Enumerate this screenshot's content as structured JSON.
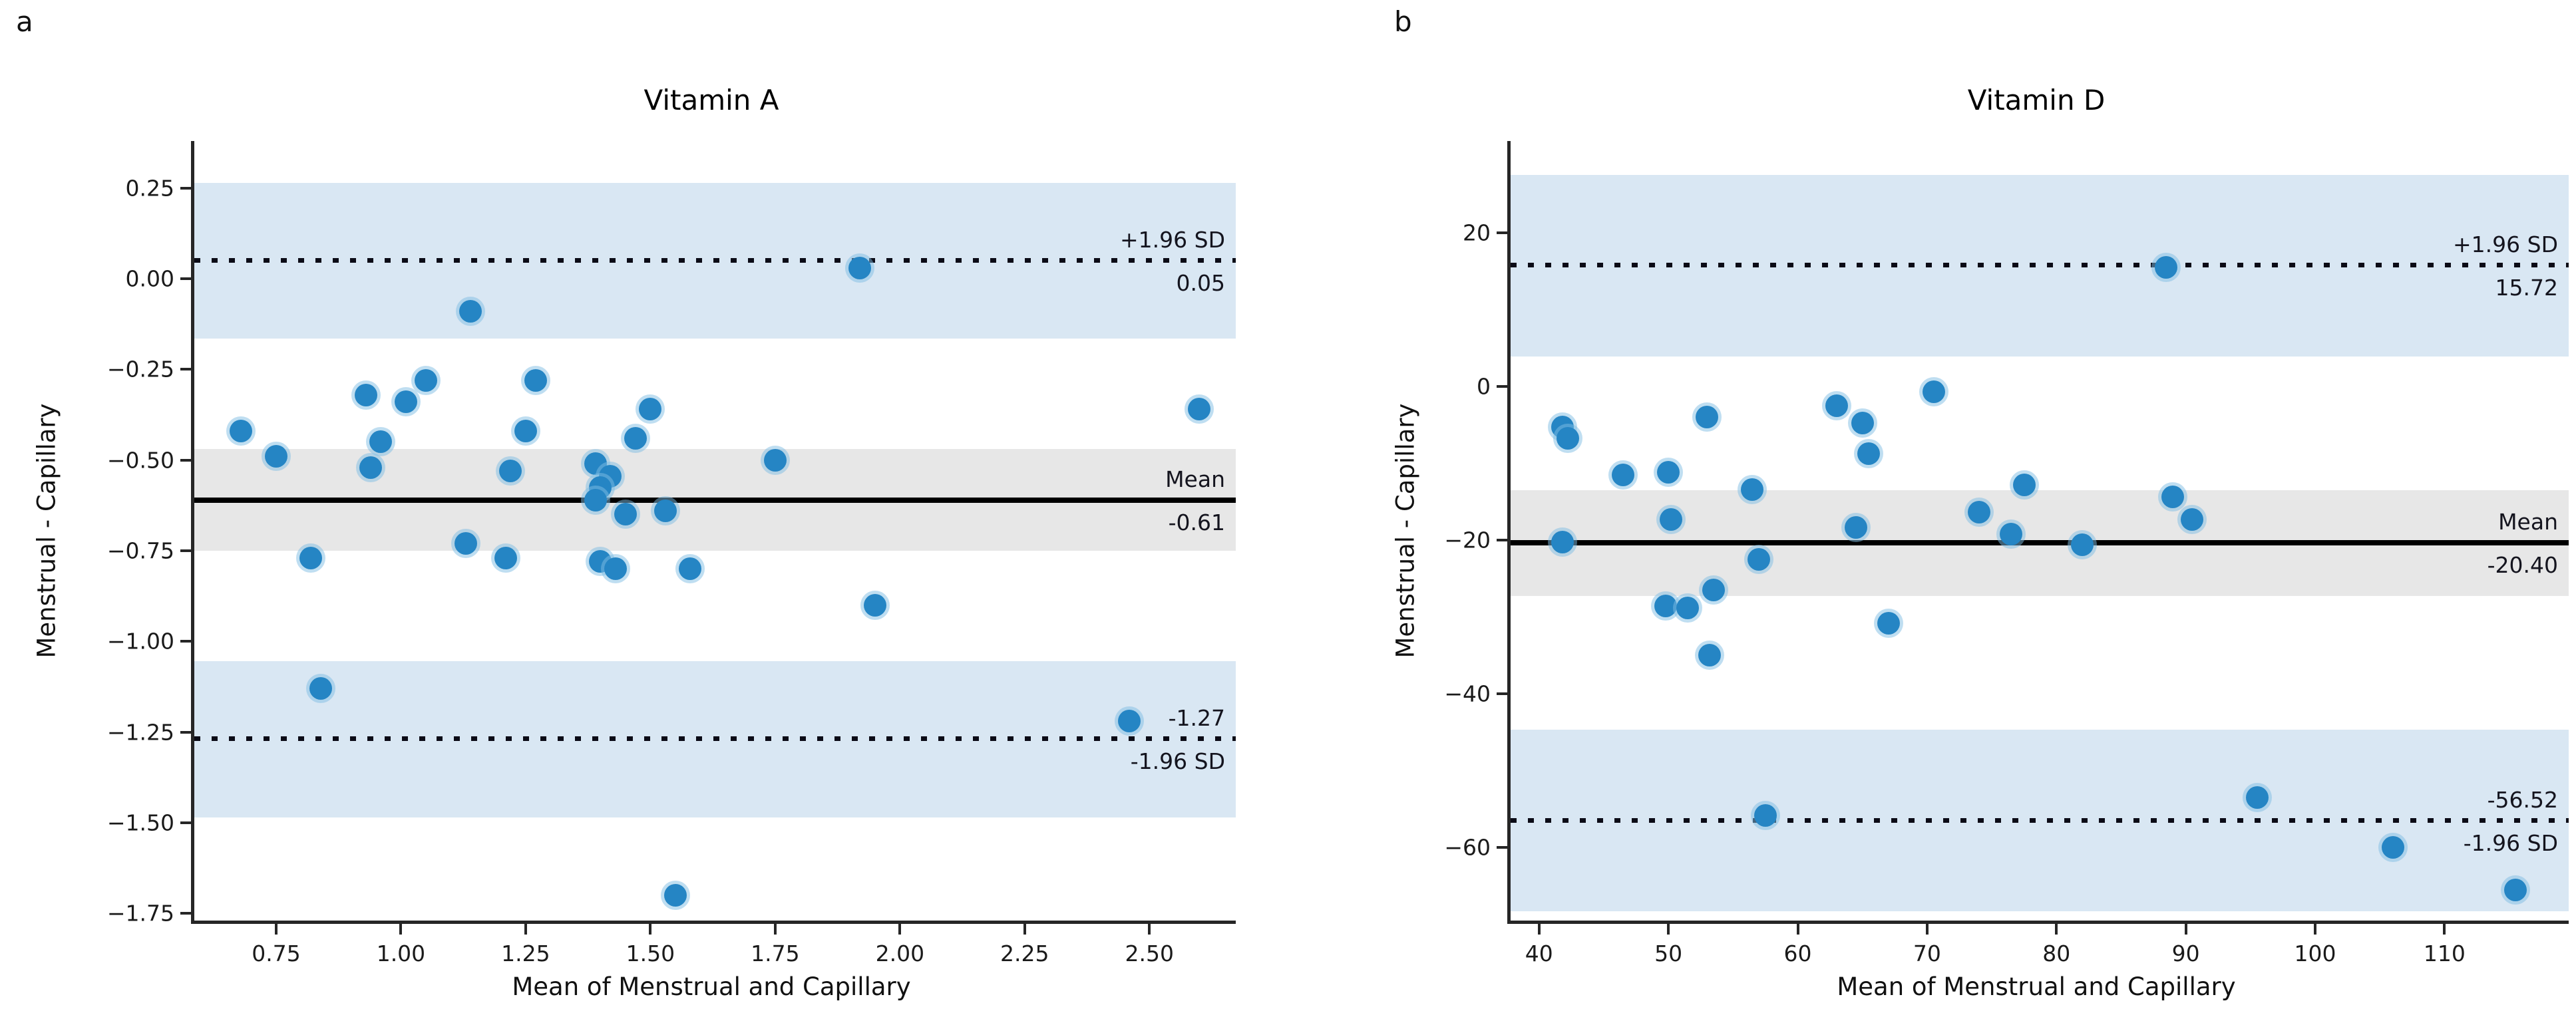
{
  "figure": {
    "panel_a_letter": "a",
    "panel_b_letter": "b"
  },
  "style": {
    "marker_color": "#2585c4",
    "marker_halo": "rgba(128,190,227,0.5)",
    "blue_band_color": "#d9e7f3",
    "gray_band_color": "#e7e7e7",
    "line_color": "#000000"
  },
  "chart_data": [
    {
      "type": "scatter",
      "panel": "a",
      "title": "Vitamin A",
      "xlabel": "Mean of Menstrual and Capillary",
      "ylabel": "Menstrual - Capillary",
      "xlim": [
        0.586,
        2.673
      ],
      "ylim": [
        -1.77,
        0.38
      ],
      "grid": false,
      "xticks": {
        "values": [
          0.75,
          1.0,
          1.25,
          1.5,
          1.75,
          2.0,
          2.25,
          2.5
        ],
        "labels": [
          "0.75",
          "1.00",
          "1.25",
          "1.50",
          "1.75",
          "2.00",
          "2.25",
          "2.50"
        ]
      },
      "yticks": {
        "values": [
          0.25,
          0.0,
          -0.25,
          -0.5,
          -0.75,
          -1.0,
          -1.25,
          -1.5,
          -1.75
        ],
        "labels": [
          "0.25",
          "0.00",
          "−0.25",
          "−0.50",
          "−0.75",
          "−1.00",
          "−1.25",
          "−1.50",
          "−1.75"
        ]
      },
      "lines": {
        "upper_loa": {
          "value": 0.05,
          "style": "dotted",
          "label_above": "+1.96 SD",
          "label_below": "0.05"
        },
        "mean": {
          "value": -0.61,
          "style": "solid",
          "label_above": "Mean",
          "label_below": "-0.61"
        },
        "lower_loa": {
          "value": -1.27,
          "style": "dotted",
          "label_above": "-1.27",
          "label_below": "-1.96 SD"
        }
      },
      "bands": [
        {
          "from": -0.165,
          "to": 0.265,
          "color": "#d9e7f3"
        },
        {
          "from": -0.75,
          "to": -0.47,
          "color": "#e7e7e7"
        },
        {
          "from": -1.485,
          "to": -1.055,
          "color": "#d9e7f3"
        }
      ],
      "points": [
        [
          0.68,
          -0.42
        ],
        [
          0.75,
          -0.49
        ],
        [
          0.82,
          -0.77
        ],
        [
          0.84,
          -1.13
        ],
        [
          0.93,
          -0.32
        ],
        [
          0.96,
          -0.45
        ],
        [
          0.94,
          -0.52
        ],
        [
          1.01,
          -0.34
        ],
        [
          1.05,
          -0.28
        ],
        [
          1.13,
          -0.73
        ],
        [
          1.14,
          -0.09
        ],
        [
          1.21,
          -0.77
        ],
        [
          1.22,
          -0.53
        ],
        [
          1.25,
          -0.42
        ],
        [
          1.27,
          -0.28
        ],
        [
          1.39,
          -0.51
        ],
        [
          1.42,
          -0.545
        ],
        [
          1.4,
          -0.575
        ],
        [
          1.39,
          -0.61
        ],
        [
          1.45,
          -0.65
        ],
        [
          1.4,
          -0.78
        ],
        [
          1.43,
          -0.8
        ],
        [
          1.47,
          -0.44
        ],
        [
          1.5,
          -0.36
        ],
        [
          1.53,
          -0.64
        ],
        [
          1.55,
          -1.7
        ],
        [
          1.58,
          -0.8
        ],
        [
          1.75,
          -0.5
        ],
        [
          1.92,
          0.03
        ],
        [
          1.95,
          -0.9
        ],
        [
          2.46,
          -1.22
        ],
        [
          2.6,
          -0.36
        ]
      ]
    },
    {
      "type": "scatter",
      "panel": "b",
      "title": "Vitamin D",
      "xlabel": "Mean of Menstrual and Capillary",
      "ylabel": "Menstrual - Capillary",
      "xlim": [
        37.8,
        119.6
      ],
      "ylim": [
        -69.5,
        31.9
      ],
      "grid": false,
      "xticks": {
        "values": [
          40,
          50,
          60,
          70,
          80,
          90,
          100,
          110
        ],
        "labels": [
          "40",
          "50",
          "60",
          "70",
          "80",
          "90",
          "100",
          "110"
        ]
      },
      "yticks": {
        "values": [
          20,
          0,
          -20,
          -40,
          -60
        ],
        "labels": [
          "20",
          "0",
          "−20",
          "−40",
          "−60"
        ]
      },
      "lines": {
        "upper_loa": {
          "value": 15.72,
          "style": "dotted",
          "label_above": "+1.96 SD",
          "label_below": "15.72"
        },
        "mean": {
          "value": -20.4,
          "style": "solid",
          "label_above": "Mean",
          "label_below": "-20.40"
        },
        "lower_loa": {
          "value": -56.52,
          "style": "dotted",
          "label_above": "-56.52",
          "label_below": "-1.96 SD"
        }
      },
      "bands": [
        {
          "from": 3.9,
          "to": 27.5,
          "color": "#d9e7f3"
        },
        {
          "from": -27.3,
          "to": -13.5,
          "color": "#e7e7e7"
        },
        {
          "from": -68.3,
          "to": -44.7,
          "color": "#d9e7f3"
        }
      ],
      "points": [
        [
          41.8,
          -5.3
        ],
        [
          42.2,
          -6.8
        ],
        [
          41.8,
          -20.3
        ],
        [
          46.5,
          -11.5
        ],
        [
          50.0,
          -11.2
        ],
        [
          50.2,
          -17.3
        ],
        [
          49.8,
          -28.6
        ],
        [
          51.5,
          -28.8
        ],
        [
          53.0,
          -4.0
        ],
        [
          53.5,
          -26.5
        ],
        [
          53.2,
          -35.0
        ],
        [
          56.5,
          -13.4
        ],
        [
          57.0,
          -22.5
        ],
        [
          57.5,
          -55.8
        ],
        [
          63.0,
          -2.5
        ],
        [
          64.5,
          -18.4
        ],
        [
          65.0,
          -4.8
        ],
        [
          65.5,
          -8.8
        ],
        [
          67.0,
          -30.8
        ],
        [
          70.5,
          -0.7
        ],
        [
          74.0,
          -16.4
        ],
        [
          76.5,
          -19.2
        ],
        [
          77.5,
          -12.8
        ],
        [
          82.0,
          -20.6
        ],
        [
          88.5,
          15.5
        ],
        [
          89.0,
          -14.4
        ],
        [
          90.5,
          -17.3
        ],
        [
          95.5,
          -53.5
        ],
        [
          106.0,
          -60.0
        ],
        [
          115.5,
          -65.5
        ]
      ]
    }
  ]
}
